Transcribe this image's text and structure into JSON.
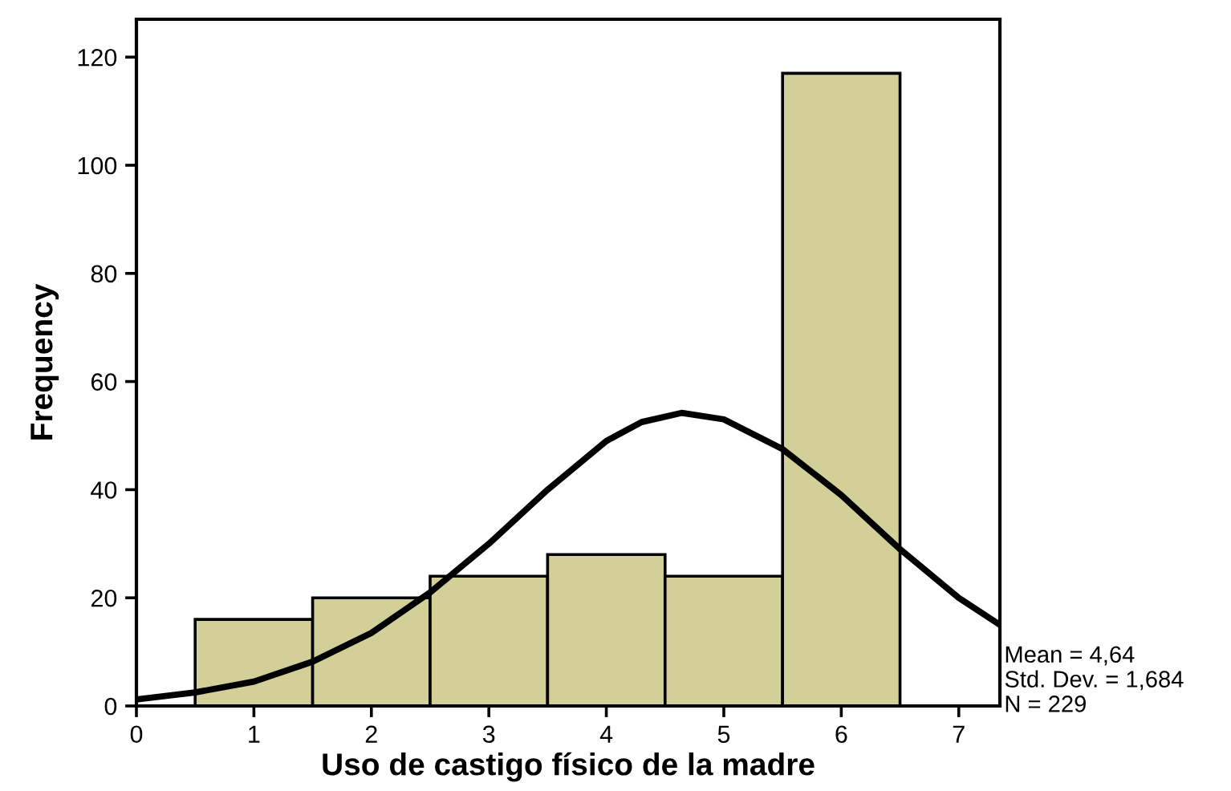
{
  "chart_data": {
    "type": "histogram",
    "xlabel": "Uso de castigo físico de la madre",
    "ylabel": "Frequency",
    "series": [
      {
        "bins": [
          0.5,
          1.5,
          2.5,
          3.5,
          4.5,
          5.5,
          6.5
        ],
        "values": [
          16,
          20,
          24,
          28,
          24,
          117
        ],
        "color": "#d3cf98"
      },
      {
        "type": "line",
        "color": "#000000",
        "x": [
          0,
          0.5,
          1,
          1.5,
          2,
          2.5,
          3,
          3.5,
          4,
          4.3,
          4.64,
          5,
          5.5,
          6,
          6.5,
          7,
          7.35
        ],
        "values": [
          1.2,
          2.5,
          4.5,
          8.2,
          13.5,
          21,
          30,
          40,
          49,
          52.5,
          54.2,
          53,
          47.5,
          39,
          29,
          20,
          15
        ]
      }
    ],
    "xlim": [
      0,
      7.35
    ],
    "xticks": [
      0,
      1,
      2,
      3,
      4,
      5,
      6,
      7
    ],
    "ylim": [
      0,
      127
    ],
    "yticks": [
      0,
      20,
      40,
      60,
      80,
      100,
      120
    ],
    "grid": false,
    "annotations": [
      "Mean = 4,64",
      "Std. Dev. = 1,684",
      "N = 229"
    ]
  }
}
